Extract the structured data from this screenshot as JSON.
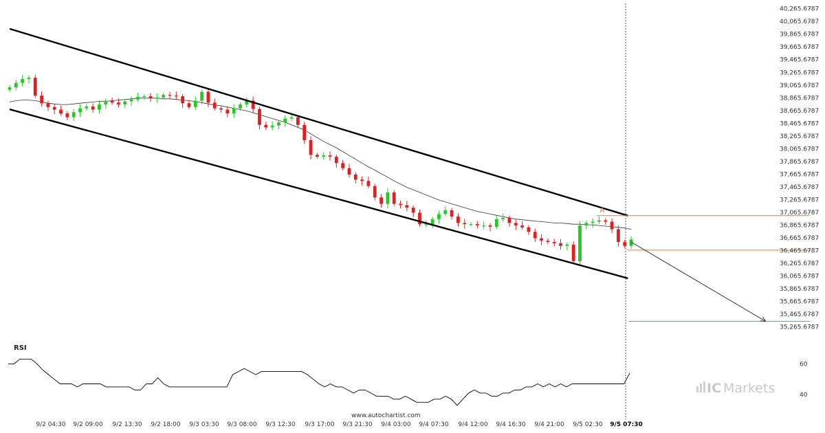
{
  "chart_data": {
    "type": "candlestick",
    "title": "",
    "xlabel": "",
    "ylabel": "",
    "y_axis": {
      "ylim": [
        35165.6787,
        40315.6787
      ],
      "ticks": [
        "40,265.6787",
        "40,065.6787",
        "39,865.6787",
        "39,665.6787",
        "39,465.6787",
        "39,265.6787",
        "39,065.6787",
        "38,865.6787",
        "38,665.6787",
        "38,465.6787",
        "38,265.6787",
        "38,065.6787",
        "37,865.6787",
        "37,665.6787",
        "37,465.6787",
        "37,265.6787",
        "37,065.6787",
        "36,865.6787",
        "36,665.6787",
        "36,465.6787",
        "36,265.6787",
        "36,065.6787",
        "35,865.6787",
        "35,665.6787",
        "35,465.6787",
        "35,265.6787"
      ]
    },
    "x_axis": {
      "ticks": [
        "9/2 04:30",
        "9/2 09:00",
        "9/2 13:30",
        "9/2 18:00",
        "9/3 03:30",
        "9/3 08:00",
        "9/3 12:30",
        "9/3 17:00",
        "9/3 21:30",
        "9/4 03:00",
        "9/4 07:30",
        "9/4 12:00",
        "9/4 16:30",
        "9/4 21:00",
        "9/5 02:30",
        "9/5 07:30"
      ],
      "current_label": "9/5 07:30"
    },
    "series": [
      {
        "name": "",
        "kind": "close",
        "up_color": "#22cc22",
        "down_color": "#e02020",
        "close": [
          39030,
          39100,
          39160,
          39180,
          38900,
          38780,
          38720,
          38680,
          38620,
          38560,
          38640,
          38700,
          38730,
          38680,
          38760,
          38820,
          38790,
          38760,
          38810,
          38840,
          38880,
          38890,
          38860,
          38870,
          38910,
          38900,
          38890,
          38780,
          38720,
          38820,
          38960,
          38790,
          38700,
          38680,
          38620,
          38700,
          38760,
          38820,
          38690,
          38440,
          38400,
          38430,
          38480,
          38540,
          38560,
          38440,
          38200,
          37970,
          37940,
          37960,
          37940,
          37840,
          37760,
          37660,
          37580,
          37560,
          37480,
          37300,
          37200,
          37380,
          37200,
          37180,
          37140,
          37060,
          36880,
          36880,
          36960,
          37040,
          37100,
          37000,
          36900,
          36880,
          36880,
          36860,
          36860,
          36840,
          36960,
          36980,
          36900,
          36860,
          36830,
          36760,
          36660,
          36620,
          36600,
          36580,
          36540,
          36560,
          36300,
          36860,
          36900,
          36920,
          36940,
          36920,
          36800,
          36600,
          36540,
          36640
        ]
      },
      {
        "name": "",
        "kind": "moving-average",
        "color": "#333333",
        "values": [
          38800,
          38820,
          38830,
          38830,
          38820,
          38800,
          38780,
          38770,
          38760,
          38760,
          38770,
          38780,
          38790,
          38800,
          38810,
          38810,
          38820,
          38830,
          38840,
          38850,
          38860,
          38860,
          38860,
          38860,
          38850,
          38850,
          38840,
          38830,
          38820,
          38810,
          38790,
          38770,
          38750,
          38740,
          38720,
          38700,
          38680,
          38660,
          38630,
          38600,
          38570,
          38540,
          38510,
          38480,
          38440,
          38400,
          38360,
          38300,
          38240,
          38180,
          38130,
          38080,
          38020,
          37960,
          37900,
          37840,
          37780,
          37730,
          37670,
          37620,
          37560,
          37510,
          37460,
          37420,
          37380,
          37340,
          37300,
          37260,
          37230,
          37200,
          37170,
          37140,
          37110,
          37080,
          37060,
          37040,
          37020,
          37000,
          36980,
          36960,
          36950,
          36940,
          36930,
          36920,
          36910,
          36900,
          36900,
          36890,
          36880,
          36880,
          36870,
          36870,
          36860,
          36850,
          36840,
          36830,
          36820,
          36800
        ]
      }
    ],
    "channel": {
      "upper": [
        {
          "x": 0,
          "y": 39950
        },
        {
          "x": 96.5,
          "y": 37014
        }
      ],
      "lower": [
        {
          "x": 0,
          "y": 38685
        },
        {
          "x": 96.5,
          "y": 36030
        }
      ]
    },
    "forecast_arrow": {
      "from": {
        "x": 97,
        "y": 36600
      },
      "to": {
        "x": 118,
        "y": 35354
      }
    },
    "levels": [
      {
        "value": 37014,
        "color": "#e07b3b"
      },
      {
        "value": 36474,
        "color": "#e07b3b"
      },
      {
        "value": 35354,
        "color": "#e07b3b"
      }
    ],
    "pattern_label": "A",
    "rsi": {
      "title": "RSI",
      "ylim": [
        32,
        66
      ],
      "ticks": [
        "60",
        "40"
      ],
      "values": [
        60,
        60,
        63,
        63,
        63,
        60,
        56,
        53,
        50,
        47,
        47,
        47,
        45,
        47,
        47,
        47,
        47,
        45,
        45,
        45,
        45,
        45,
        43,
        43,
        47,
        47,
        51,
        47,
        45,
        45,
        45,
        45,
        45,
        45,
        45,
        45,
        45,
        45,
        45,
        53,
        55,
        57,
        55,
        53,
        55,
        55,
        55,
        55,
        55,
        55,
        55,
        55,
        53,
        50,
        47,
        45,
        47,
        45,
        45,
        43,
        41,
        43,
        43,
        41,
        39,
        39,
        39,
        37,
        37,
        39,
        37,
        35,
        35,
        35,
        37,
        37,
        39,
        37,
        33,
        37,
        41,
        43,
        41,
        41,
        39,
        39,
        41,
        41,
        43,
        43,
        45,
        45,
        47,
        45,
        47,
        45,
        47,
        45,
        47,
        47,
        47,
        47,
        47,
        47,
        47,
        47,
        47,
        47,
        54
      ]
    }
  },
  "footer": {
    "source": "www.autochartist.com"
  },
  "brand": {
    "ic": "IC",
    "markets": "Markets",
    "logo_icon": "bars-icon"
  }
}
